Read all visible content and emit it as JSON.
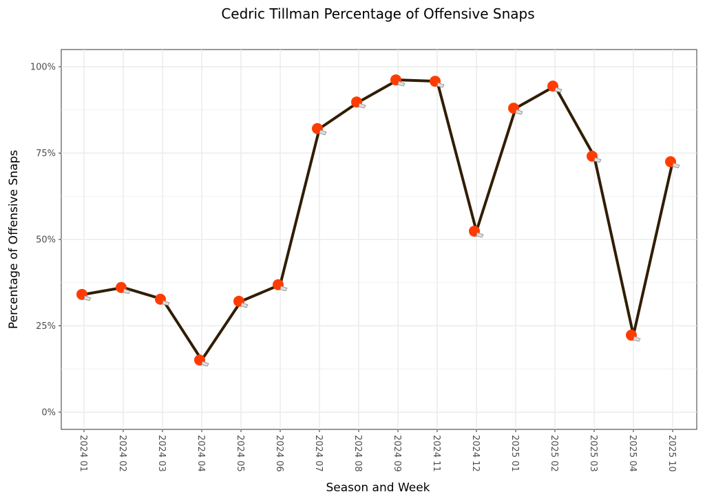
{
  "chart_data": {
    "type": "line",
    "title": "Cedric Tillman Percentage of Offensive Snaps",
    "xlabel": "Season and Week",
    "ylabel": "Percentage of Offensive Snaps",
    "categories": [
      "2024 01",
      "2024 02",
      "2024 03",
      "2024 04",
      "2024 05",
      "2024 06",
      "2024 07",
      "2024 08",
      "2024 09",
      "2024 11",
      "2024 12",
      "2025 01",
      "2025 02",
      "2025 03",
      "2025 04",
      "2025 10"
    ],
    "values": [
      34.1,
      36.1,
      32.7,
      15.1,
      32.1,
      36.9,
      82.1,
      89.8,
      96.2,
      95.8,
      52.4,
      88.0,
      94.4,
      74.1,
      22.3,
      72.5
    ],
    "ylim": [
      -4.9,
      105
    ],
    "yticks": [
      0,
      25,
      50,
      75,
      100
    ],
    "ytick_labels": [
      "0%",
      "25%",
      "50%",
      "75%",
      "100%"
    ],
    "grid": true,
    "legend": "none",
    "line_color": "#311D00",
    "marker_color": "#FF3C00",
    "marker": "helmet-icon"
  }
}
